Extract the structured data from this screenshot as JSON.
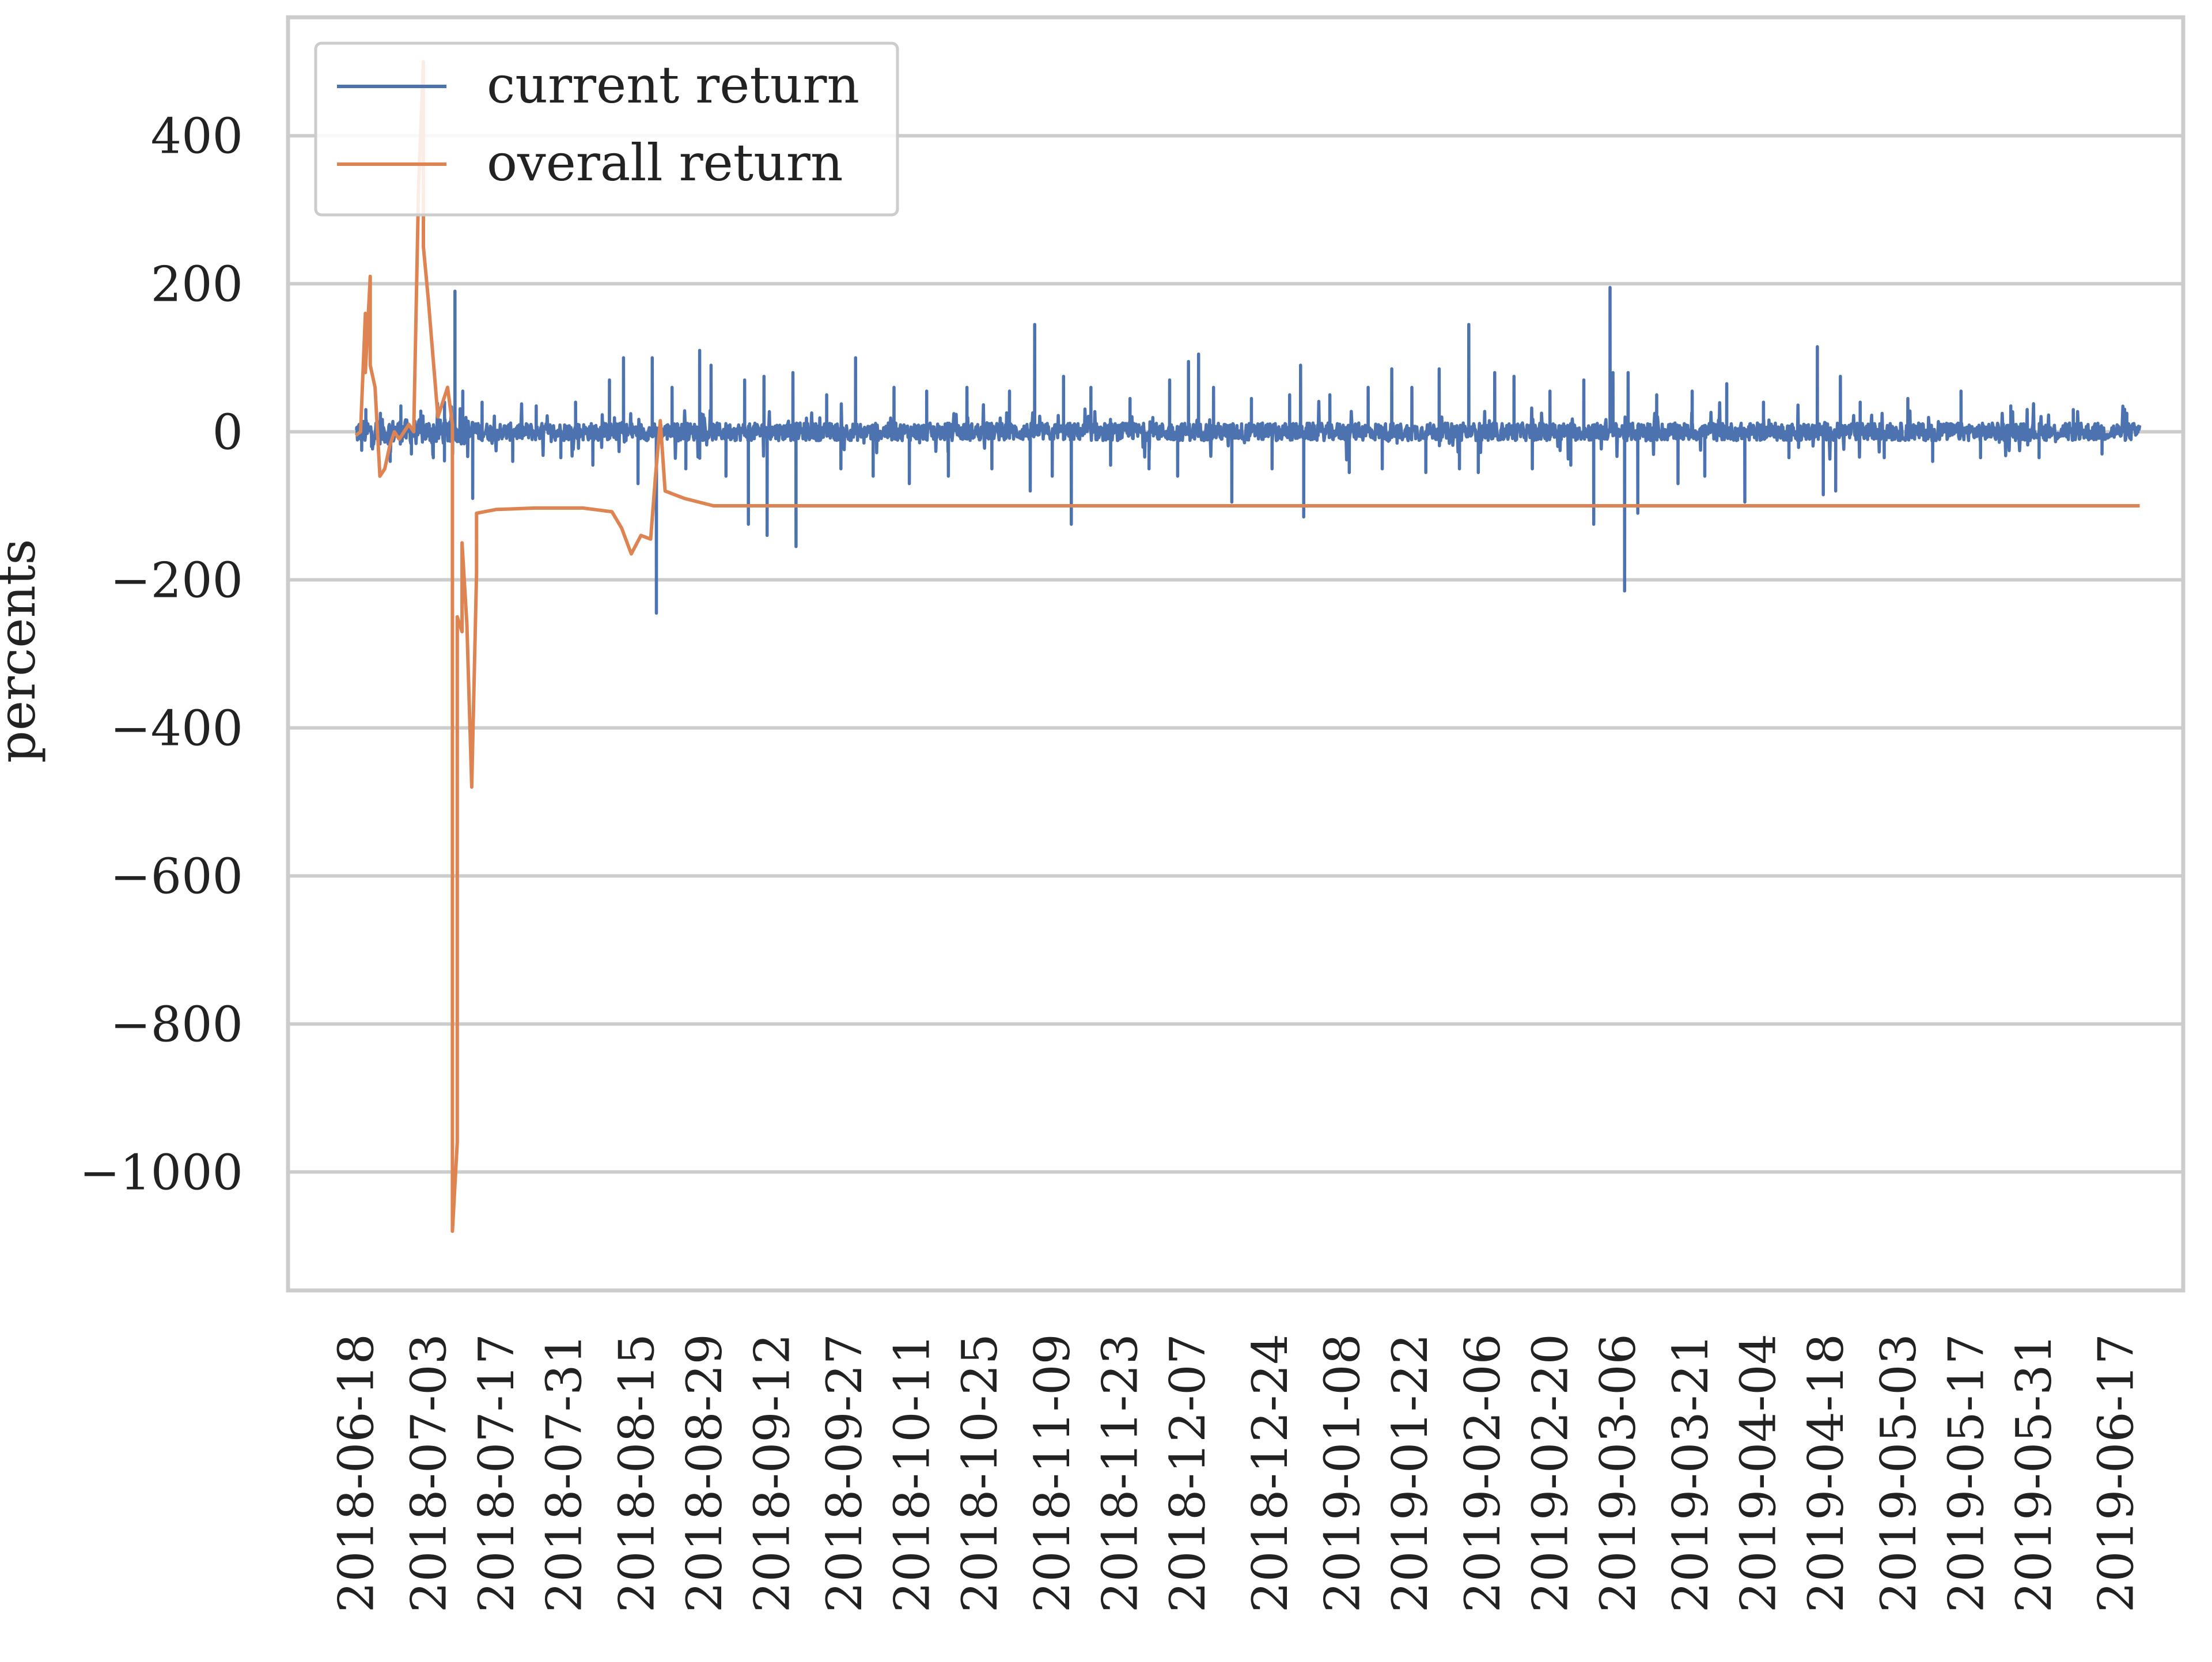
{
  "chart_data": {
    "type": "line",
    "title": "",
    "xlabel": "",
    "ylabel": "percents",
    "x_start": "2018-06-18",
    "x_end": "2019-06-22",
    "xlim": [
      "2018-06-04",
      "2019-07-01"
    ],
    "ylim": [
      -1160,
      560
    ],
    "yticks": [
      400,
      200,
      0,
      -200,
      -400,
      -600,
      -800,
      -1000
    ],
    "ytick_labels": [
      "400",
      "200",
      "0",
      "−200",
      "−400",
      "−600",
      "−800",
      "−1000"
    ],
    "xticks": [
      "2018-06-18",
      "2018-07-03",
      "2018-07-17",
      "2018-07-31",
      "2018-08-15",
      "2018-08-29",
      "2018-09-12",
      "2018-09-27",
      "2018-10-11",
      "2018-10-25",
      "2018-11-09",
      "2018-11-23",
      "2018-12-07",
      "2018-12-24",
      "2019-01-08",
      "2019-01-22",
      "2019-02-06",
      "2019-02-20",
      "2019-03-06",
      "2019-03-21",
      "2019-04-04",
      "2019-04-18",
      "2019-05-03",
      "2019-05-17",
      "2019-05-31",
      "2019-06-17"
    ],
    "grid": true,
    "legend_position": "top-left",
    "series": [
      {
        "name": "current return",
        "color": "#4c72b0",
        "noise_amplitude": 12,
        "spikes": [
          {
            "x": "2018-06-19",
            "y": -25
          },
          {
            "x": "2018-06-20",
            "y": 30
          },
          {
            "x": "2018-06-21",
            "y": -20
          },
          {
            "x": "2018-06-23",
            "y": 25
          },
          {
            "x": "2018-06-25",
            "y": -40
          },
          {
            "x": "2018-06-27",
            "y": 35
          },
          {
            "x": "2018-06-29",
            "y": -30
          },
          {
            "x": "2018-07-01",
            "y": 28
          },
          {
            "x": "2018-07-04",
            "y": -35
          },
          {
            "x": "2018-07-06",
            "y": 40
          },
          {
            "x": "2018-07-08",
            "y": 190
          },
          {
            "x": "2018-07-08",
            "y": -30
          },
          {
            "x": "2018-07-10",
            "y": 55
          },
          {
            "x": "2018-07-12",
            "y": -90
          },
          {
            "x": "2018-07-14",
            "y": 40
          },
          {
            "x": "2018-07-20",
            "y": -40
          },
          {
            "x": "2018-07-25",
            "y": 35
          },
          {
            "x": "2018-07-30",
            "y": -35
          },
          {
            "x": "2018-08-02",
            "y": 40
          },
          {
            "x": "2018-08-06",
            "y": -45
          },
          {
            "x": "2018-08-09",
            "y": 70
          },
          {
            "x": "2018-08-12",
            "y": 100
          },
          {
            "x": "2018-08-15",
            "y": -70
          },
          {
            "x": "2018-08-18",
            "y": 100
          },
          {
            "x": "2018-08-19",
            "y": -245
          },
          {
            "x": "2018-08-22",
            "y": 60
          },
          {
            "x": "2018-08-25",
            "y": -50
          },
          {
            "x": "2018-08-28",
            "y": 110
          },
          {
            "x": "2018-08-30",
            "y": 90
          },
          {
            "x": "2018-09-02",
            "y": -60
          },
          {
            "x": "2018-09-06",
            "y": 70
          },
          {
            "x": "2018-09-07",
            "y": -125
          },
          {
            "x": "2018-09-10",
            "y": 75
          },
          {
            "x": "2018-09-11",
            "y": -140
          },
          {
            "x": "2018-09-16",
            "y": 80
          },
          {
            "x": "2018-09-17",
            "y": -155
          },
          {
            "x": "2018-09-23",
            "y": 50
          },
          {
            "x": "2018-09-26",
            "y": -50
          },
          {
            "x": "2018-09-29",
            "y": 100
          },
          {
            "x": "2018-10-03",
            "y": -60
          },
          {
            "x": "2018-10-07",
            "y": 60
          },
          {
            "x": "2018-10-10",
            "y": -70
          },
          {
            "x": "2018-10-14",
            "y": 55
          },
          {
            "x": "2018-10-18",
            "y": -60
          },
          {
            "x": "2018-10-22",
            "y": 60
          },
          {
            "x": "2018-10-27",
            "y": -50
          },
          {
            "x": "2018-10-31",
            "y": 55
          },
          {
            "x": "2018-11-04",
            "y": -80
          },
          {
            "x": "2018-11-05",
            "y": 145
          },
          {
            "x": "2018-11-09",
            "y": -60
          },
          {
            "x": "2018-11-11",
            "y": 75
          },
          {
            "x": "2018-11-13",
            "y": -125
          },
          {
            "x": "2018-11-17",
            "y": 60
          },
          {
            "x": "2018-11-21",
            "y": -45
          },
          {
            "x": "2018-11-25",
            "y": 45
          },
          {
            "x": "2018-11-29",
            "y": -50
          },
          {
            "x": "2018-12-03",
            "y": 70
          },
          {
            "x": "2018-12-05",
            "y": -60
          },
          {
            "x": "2018-12-07",
            "y": 95
          },
          {
            "x": "2018-12-09",
            "y": 105
          },
          {
            "x": "2018-12-12",
            "y": 60
          },
          {
            "x": "2018-12-16",
            "y": -95
          },
          {
            "x": "2018-12-20",
            "y": 45
          },
          {
            "x": "2018-12-24",
            "y": -50
          },
          {
            "x": "2018-12-28",
            "y": 50
          },
          {
            "x": "2018-12-30",
            "y": 90
          },
          {
            "x": "2018-12-31",
            "y": -115
          },
          {
            "x": "2019-01-05",
            "y": 50
          },
          {
            "x": "2019-01-09",
            "y": -55
          },
          {
            "x": "2019-01-13",
            "y": 60
          },
          {
            "x": "2019-01-16",
            "y": -50
          },
          {
            "x": "2019-01-18",
            "y": 85
          },
          {
            "x": "2019-01-22",
            "y": 60
          },
          {
            "x": "2019-01-25",
            "y": -55
          },
          {
            "x": "2019-01-28",
            "y": 85
          },
          {
            "x": "2019-02-01",
            "y": -50
          },
          {
            "x": "2019-02-03",
            "y": 145
          },
          {
            "x": "2019-02-05",
            "y": -55
          },
          {
            "x": "2019-02-08",
            "y": 80
          },
          {
            "x": "2019-02-12",
            "y": 75
          },
          {
            "x": "2019-02-16",
            "y": -50
          },
          {
            "x": "2019-02-20",
            "y": 55
          },
          {
            "x": "2019-02-24",
            "y": -45
          },
          {
            "x": "2019-02-27",
            "y": 70
          },
          {
            "x": "2019-03-01",
            "y": -125
          },
          {
            "x": "2019-03-04",
            "y": 195
          },
          {
            "x": "2019-03-05",
            "y": 80
          },
          {
            "x": "2019-03-07",
            "y": -215
          },
          {
            "x": "2019-03-08",
            "y": 80
          },
          {
            "x": "2019-03-10",
            "y": -110
          },
          {
            "x": "2019-03-14",
            "y": 50
          },
          {
            "x": "2019-03-18",
            "y": -70
          },
          {
            "x": "2019-03-21",
            "y": 55
          },
          {
            "x": "2019-03-24",
            "y": -60
          },
          {
            "x": "2019-03-28",
            "y": 65
          },
          {
            "x": "2019-04-01",
            "y": -95
          },
          {
            "x": "2019-04-05",
            "y": 40
          },
          {
            "x": "2019-04-10",
            "y": -35
          },
          {
            "x": "2019-04-16",
            "y": 115
          },
          {
            "x": "2019-04-17",
            "y": -85
          },
          {
            "x": "2019-04-20",
            "y": -80
          },
          {
            "x": "2019-04-21",
            "y": 75
          },
          {
            "x": "2019-04-25",
            "y": 40
          },
          {
            "x": "2019-04-30",
            "y": -35
          },
          {
            "x": "2019-05-05",
            "y": 45
          },
          {
            "x": "2019-05-10",
            "y": -40
          },
          {
            "x": "2019-05-16",
            "y": 55
          },
          {
            "x": "2019-05-20",
            "y": -35
          },
          {
            "x": "2019-05-26",
            "y": 35
          },
          {
            "x": "2019-06-01",
            "y": -35
          },
          {
            "x": "2019-06-08",
            "y": 30
          },
          {
            "x": "2019-06-14",
            "y": -30
          },
          {
            "x": "2019-06-19",
            "y": 25
          }
        ]
      },
      {
        "name": "overall return",
        "color": "#dd8452",
        "points": [
          {
            "x": "2018-06-18",
            "y": -5
          },
          {
            "x": "2018-06-19",
            "y": 0
          },
          {
            "x": "2018-06-20",
            "y": 160
          },
          {
            "x": "2018-06-20",
            "y": 80
          },
          {
            "x": "2018-06-21",
            "y": 210
          },
          {
            "x": "2018-06-21",
            "y": 90
          },
          {
            "x": "2018-06-22",
            "y": 60
          },
          {
            "x": "2018-06-23",
            "y": -60
          },
          {
            "x": "2018-06-24",
            "y": -50
          },
          {
            "x": "2018-06-25",
            "y": -20
          },
          {
            "x": "2018-06-26",
            "y": 0
          },
          {
            "x": "2018-06-27",
            "y": -10
          },
          {
            "x": "2018-06-29",
            "y": 10
          },
          {
            "x": "2018-06-30",
            "y": 0
          },
          {
            "x": "2018-07-01",
            "y": 330
          },
          {
            "x": "2018-07-02",
            "y": 500
          },
          {
            "x": "2018-07-02",
            "y": 250
          },
          {
            "x": "2018-07-03",
            "y": 180
          },
          {
            "x": "2018-07-04",
            "y": 100
          },
          {
            "x": "2018-07-05",
            "y": 20
          },
          {
            "x": "2018-07-06",
            "y": 40
          },
          {
            "x": "2018-07-07",
            "y": 60
          },
          {
            "x": "2018-07-08",
            "y": 10
          },
          {
            "x": "2018-07-08",
            "y": -500
          },
          {
            "x": "2018-07-08",
            "y": -1080
          },
          {
            "x": "2018-07-09",
            "y": -960
          },
          {
            "x": "2018-07-09",
            "y": -250
          },
          {
            "x": "2018-07-10",
            "y": -270
          },
          {
            "x": "2018-07-10",
            "y": -150
          },
          {
            "x": "2018-07-11",
            "y": -260
          },
          {
            "x": "2018-07-12",
            "y": -480
          },
          {
            "x": "2018-07-13",
            "y": -190
          },
          {
            "x": "2018-07-13",
            "y": -110
          },
          {
            "x": "2018-07-17",
            "y": -105
          },
          {
            "x": "2018-07-25",
            "y": -103
          },
          {
            "x": "2018-08-04",
            "y": -103
          },
          {
            "x": "2018-08-10",
            "y": -108
          },
          {
            "x": "2018-08-12",
            "y": -130
          },
          {
            "x": "2018-08-14",
            "y": -165
          },
          {
            "x": "2018-08-16",
            "y": -140
          },
          {
            "x": "2018-08-18",
            "y": -145
          },
          {
            "x": "2018-08-19",
            "y": -60
          },
          {
            "x": "2018-08-20",
            "y": 15
          },
          {
            "x": "2018-08-21",
            "y": -80
          },
          {
            "x": "2018-08-23",
            "y": -85
          },
          {
            "x": "2018-08-25",
            "y": -90
          },
          {
            "x": "2018-08-28",
            "y": -95
          },
          {
            "x": "2018-08-31",
            "y": -100
          },
          {
            "x": "2019-06-22",
            "y": -100
          }
        ]
      }
    ]
  }
}
